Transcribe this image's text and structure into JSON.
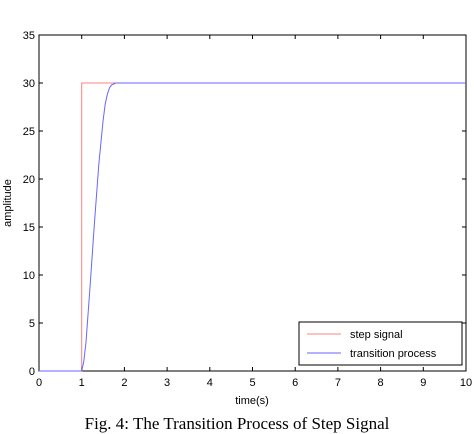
{
  "caption": "Fig. 4: The Transition Process of Step Signal",
  "chart_data": {
    "type": "line",
    "title": "",
    "xlabel": "time(s)",
    "ylabel": "amplitude",
    "xlim": [
      0,
      10
    ],
    "ylim": [
      0,
      35
    ],
    "xticks": [
      0,
      1,
      2,
      3,
      4,
      5,
      6,
      7,
      8,
      9,
      10
    ],
    "yticks": [
      0,
      5,
      10,
      15,
      20,
      25,
      30,
      35
    ],
    "grid": false,
    "legend_position": "bottom-right",
    "series": [
      {
        "name": "step signal",
        "color": "#ff8080",
        "x": [
          0,
          1,
          1,
          10
        ],
        "y": [
          0,
          0,
          30,
          30
        ]
      },
      {
        "name": "transition process",
        "color": "#6666ff",
        "x": [
          0,
          1.0,
          1.05,
          1.1,
          1.2,
          1.3,
          1.4,
          1.5,
          1.55,
          1.6,
          1.65,
          1.7,
          1.8,
          2.0,
          10
        ],
        "y": [
          0,
          0,
          1,
          3,
          9,
          15.5,
          21.5,
          26,
          27.8,
          28.8,
          29.5,
          29.8,
          30,
          30,
          30
        ]
      }
    ]
  }
}
